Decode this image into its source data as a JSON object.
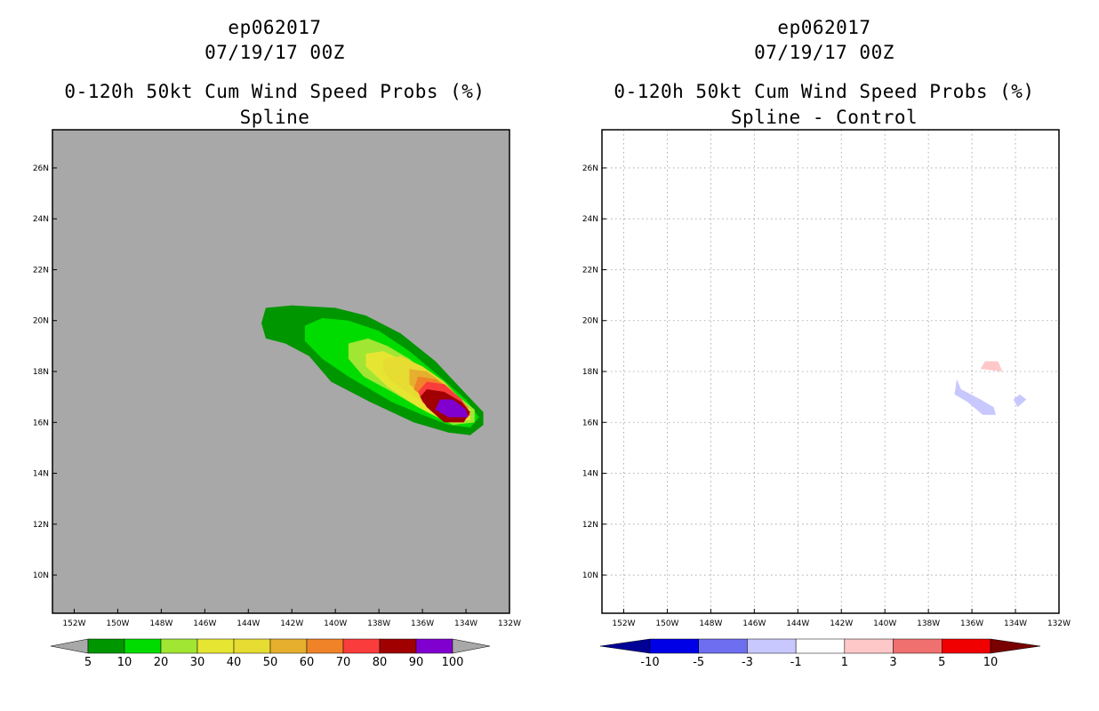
{
  "panels": [
    {
      "header": {
        "storm_id": "ep062017",
        "datetime": "07/19/17 00Z",
        "product": "0-120h 50kt Cum Wind Speed Probs (%)",
        "subtitle": "Spline"
      },
      "map_background": "#a8a8a8",
      "grid": false,
      "colorbar": {
        "levels": [
          "5",
          "10",
          "20",
          "30",
          "40",
          "50",
          "60",
          "70",
          "80",
          "90",
          "100"
        ],
        "colors": [
          "#009600",
          "#00dc00",
          "#a0e632",
          "#e6e632",
          "#e6dc32",
          "#e6af2d",
          "#f08228",
          "#fa3c3c",
          "#a00000",
          "#8000d0"
        ],
        "under_color": "#a8a8a8",
        "over_color": "#a8a8a8"
      },
      "chart_data": {
        "type": "filled-contour-map",
        "variable": "0-120h 50kt cumulative wind speed probability",
        "units": "%",
        "xlim_lon": [
          -153,
          -132
        ],
        "ylim_lat": [
          8.5,
          27.5
        ],
        "x_ticks": [
          {
            "lon": -152,
            "label": "152W"
          },
          {
            "lon": -150,
            "label": "150W"
          },
          {
            "lon": -148,
            "label": "148W"
          },
          {
            "lon": -146,
            "label": "146W"
          },
          {
            "lon": -144,
            "label": "144W"
          },
          {
            "lon": -142,
            "label": "142W"
          },
          {
            "lon": -140,
            "label": "140W"
          },
          {
            "lon": -138,
            "label": "138W"
          },
          {
            "lon": -136,
            "label": "136W"
          },
          {
            "lon": -134,
            "label": "134W"
          },
          {
            "lon": -132,
            "label": "132W"
          }
        ],
        "y_ticks": [
          {
            "lat": 10,
            "label": "10N"
          },
          {
            "lat": 12,
            "label": "12N"
          },
          {
            "lat": 14,
            "label": "14N"
          },
          {
            "lat": 16,
            "label": "16N"
          },
          {
            "lat": 18,
            "label": "18N"
          },
          {
            "lat": 20,
            "label": "20N"
          },
          {
            "lat": 22,
            "label": "22N"
          },
          {
            "lat": 24,
            "label": "24N"
          },
          {
            "lat": 26,
            "label": "26N"
          }
        ],
        "contours": [
          {
            "level": 5,
            "color": "#009600",
            "points": [
              [
                -143.2,
                20.5
              ],
              [
                -142,
                20.6
              ],
              [
                -140,
                20.5
              ],
              [
                -138.6,
                20.2
              ],
              [
                -137,
                19.5
              ],
              [
                -135.4,
                18.4
              ],
              [
                -134.2,
                17.3
              ],
              [
                -133.2,
                16.4
              ],
              [
                -133.2,
                15.9
              ],
              [
                -133.8,
                15.5
              ],
              [
                -134.8,
                15.6
              ],
              [
                -136.4,
                16.0
              ],
              [
                -138.4,
                16.8
              ],
              [
                -140.2,
                17.6
              ],
              [
                -141.2,
                18.6
              ],
              [
                -142.3,
                19.1
              ],
              [
                -143.2,
                19.3
              ],
              [
                -143.4,
                19.9
              ]
            ]
          },
          {
            "level": 10,
            "color": "#00dc00",
            "points": [
              [
                -141.4,
                19.8
              ],
              [
                -140.6,
                20.1
              ],
              [
                -139.4,
                20.0
              ],
              [
                -138,
                19.6
              ],
              [
                -136.6,
                18.8
              ],
              [
                -135.2,
                17.8
              ],
              [
                -134,
                16.9
              ],
              [
                -133.4,
                16.2
              ],
              [
                -133.8,
                15.8
              ],
              [
                -134.8,
                15.9
              ],
              [
                -136,
                16.3
              ],
              [
                -137.4,
                16.8
              ],
              [
                -139.4,
                17.8
              ],
              [
                -140.6,
                18.5
              ],
              [
                -141.4,
                19.2
              ]
            ]
          },
          {
            "level": 20,
            "color": "#a0e632",
            "points": [
              [
                -139.4,
                19.1
              ],
              [
                -138.5,
                19.3
              ],
              [
                -137.6,
                19.0
              ],
              [
                -136.6,
                18.5
              ],
              [
                -135.6,
                17.8
              ],
              [
                -134.6,
                17.2
              ],
              [
                -133.6,
                16.5
              ],
              [
                -133.6,
                16.0
              ],
              [
                -134.6,
                15.9
              ],
              [
                -135.8,
                16.4
              ],
              [
                -137.4,
                17.2
              ],
              [
                -138.7,
                17.8
              ],
              [
                -139.4,
                18.5
              ]
            ]
          },
          {
            "level": 30,
            "color": "#e6e632",
            "points": [
              [
                -138.6,
                18.7
              ],
              [
                -137.8,
                18.8
              ],
              [
                -136.8,
                18.4
              ],
              [
                -135.8,
                17.8
              ],
              [
                -134.8,
                17.2
              ],
              [
                -133.8,
                16.5
              ],
              [
                -133.8,
                16.1
              ],
              [
                -134.8,
                16.0
              ],
              [
                -136.2,
                16.6
              ],
              [
                -137.6,
                17.4
              ],
              [
                -138.6,
                18.2
              ]
            ]
          },
          {
            "level": 40,
            "color": "#e6dc32",
            "points": [
              [
                -137.8,
                18.5
              ],
              [
                -137.0,
                18.6
              ],
              [
                -136.0,
                18.2
              ],
              [
                -135.0,
                17.6
              ],
              [
                -134.0,
                16.7
              ],
              [
                -133.9,
                16.2
              ],
              [
                -134.8,
                16.1
              ],
              [
                -136.0,
                16.8
              ],
              [
                -137.4,
                17.6
              ],
              [
                -137.8,
                18.0
              ]
            ]
          },
          {
            "level": 50,
            "color": "#e6af2d",
            "points": [
              [
                -136.6,
                18.1
              ],
              [
                -135.8,
                18.0
              ],
              [
                -134.8,
                17.4
              ],
              [
                -133.9,
                16.6
              ],
              [
                -133.9,
                16.2
              ],
              [
                -134.8,
                16.2
              ],
              [
                -135.6,
                16.8
              ],
              [
                -136.6,
                17.5
              ]
            ]
          },
          {
            "level": 60,
            "color": "#f08228",
            "points": [
              [
                -136.2,
                17.8
              ],
              [
                -135.4,
                17.7
              ],
              [
                -134.6,
                17.2
              ],
              [
                -133.9,
                16.6
              ],
              [
                -133.9,
                16.2
              ],
              [
                -134.9,
                16.3
              ],
              [
                -135.8,
                16.9
              ],
              [
                -136.4,
                17.3
              ]
            ]
          },
          {
            "level": 70,
            "color": "#fa3c3c",
            "points": [
              [
                -135.8,
                17.6
              ],
              [
                -135.0,
                17.5
              ],
              [
                -134.2,
                16.9
              ],
              [
                -133.8,
                16.3
              ],
              [
                -134.2,
                16.0
              ],
              [
                -135.2,
                16.2
              ],
              [
                -136.0,
                16.8
              ],
              [
                -136.2,
                17.2
              ]
            ]
          },
          {
            "level": 80,
            "color": "#a00000",
            "points": [
              [
                -135.8,
                17.3
              ],
              [
                -135.0,
                17.2
              ],
              [
                -134.2,
                16.8
              ],
              [
                -133.8,
                16.4
              ],
              [
                -134.1,
                16.0
              ],
              [
                -135.0,
                16.0
              ],
              [
                -135.8,
                16.6
              ],
              [
                -136.1,
                17.0
              ]
            ]
          },
          {
            "level": 90,
            "color": "#8000d0",
            "points": [
              [
                -135.2,
                16.9
              ],
              [
                -134.6,
                16.9
              ],
              [
                -134.0,
                16.5
              ],
              [
                -133.9,
                16.2
              ],
              [
                -134.8,
                16.2
              ],
              [
                -135.4,
                16.5
              ]
            ]
          }
        ]
      }
    },
    {
      "header": {
        "storm_id": "ep062017",
        "datetime": "07/19/17 00Z",
        "product": "0-120h 50kt Cum Wind Speed Probs (%)",
        "subtitle": "Spline - Control"
      },
      "map_background": "#ffffff",
      "grid": true,
      "colorbar": {
        "levels": [
          "-10",
          "-5",
          "-3",
          "-1",
          "1",
          "3",
          "5",
          "10"
        ],
        "colors": [
          "#0000e6",
          "#6e6ef0",
          "#c8c8ff",
          "#ffffff",
          "#ffc8c8",
          "#f07070",
          "#f00000"
        ],
        "under_color": "#000096",
        "over_color": "#780000"
      },
      "chart_data": {
        "type": "filled-contour-map",
        "variable": "0-120h 50kt cumulative wind speed probability difference (Spline - Control)",
        "units": "%",
        "xlim_lon": [
          -153,
          -132
        ],
        "ylim_lat": [
          8.5,
          27.5
        ],
        "x_ticks": [
          {
            "lon": -152,
            "label": "152W"
          },
          {
            "lon": -150,
            "label": "150W"
          },
          {
            "lon": -148,
            "label": "148W"
          },
          {
            "lon": -146,
            "label": "146W"
          },
          {
            "lon": -144,
            "label": "144W"
          },
          {
            "lon": -142,
            "label": "142W"
          },
          {
            "lon": -140,
            "label": "140W"
          },
          {
            "lon": -138,
            "label": "138W"
          },
          {
            "lon": -136,
            "label": "136W"
          },
          {
            "lon": -134,
            "label": "134W"
          },
          {
            "lon": -132,
            "label": "132W"
          }
        ],
        "y_ticks": [
          {
            "lat": 10,
            "label": "10N"
          },
          {
            "lat": 12,
            "label": "12N"
          },
          {
            "lat": 14,
            "label": "14N"
          },
          {
            "lat": 16,
            "label": "16N"
          },
          {
            "lat": 18,
            "label": "18N"
          },
          {
            "lat": 20,
            "label": "20N"
          },
          {
            "lat": 22,
            "label": "22N"
          },
          {
            "lat": 24,
            "label": "24N"
          },
          {
            "lat": 26,
            "label": "26N"
          }
        ],
        "contours": [
          {
            "level": 1,
            "color": "#ffc8c8",
            "points": [
              [
                -135.6,
                18.1
              ],
              [
                -135.4,
                18.4
              ],
              [
                -134.8,
                18.4
              ],
              [
                -134.6,
                18.0
              ]
            ]
          },
          {
            "level": -1,
            "color": "#c8c8ff",
            "points": [
              [
                -136.7,
                17.7
              ],
              [
                -136.5,
                17.3
              ],
              [
                -135.6,
                16.9
              ],
              [
                -135.0,
                16.6
              ],
              [
                -134.9,
                16.3
              ],
              [
                -135.5,
                16.3
              ],
              [
                -136.2,
                16.8
              ],
              [
                -136.8,
                17.1
              ]
            ]
          },
          {
            "level": -1,
            "color": "#c8c8ff",
            "points": [
              [
                -134.1,
                16.9
              ],
              [
                -133.8,
                17.1
              ],
              [
                -133.5,
                16.9
              ],
              [
                -133.9,
                16.6
              ]
            ]
          }
        ]
      }
    }
  ]
}
